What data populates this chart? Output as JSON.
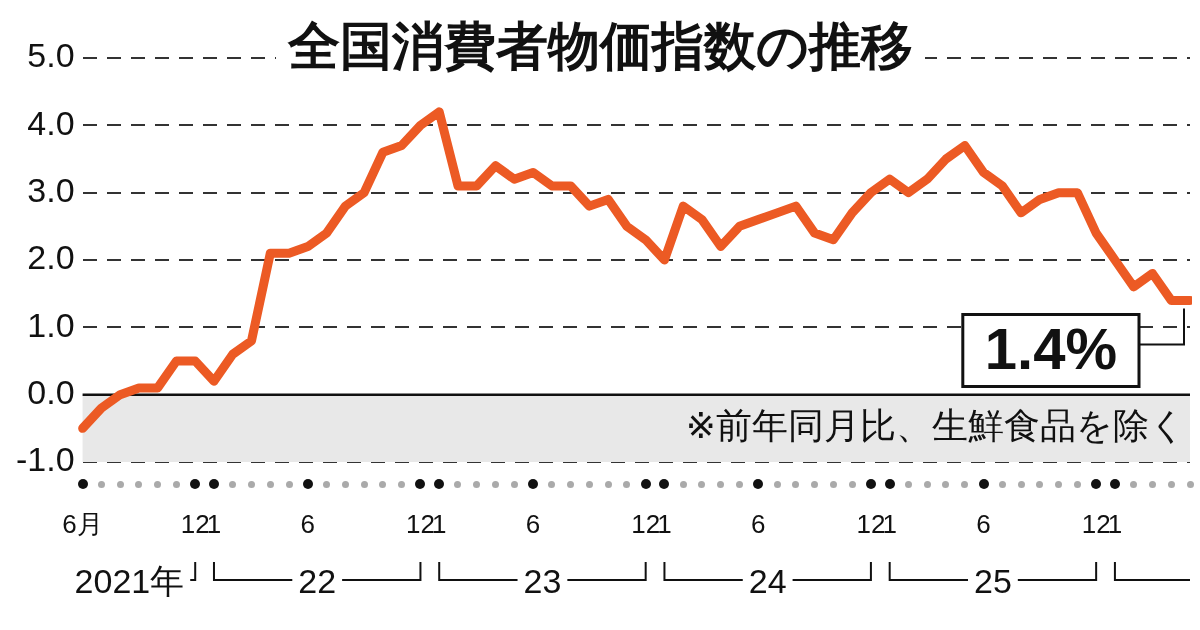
{
  "chart_data": {
    "type": "line",
    "title": "全国消費者物価指数の推移",
    "categories": [
      "6月",
      null,
      null,
      null,
      null,
      null,
      "12",
      "1",
      null,
      null,
      null,
      null,
      "6",
      null,
      null,
      null,
      null,
      null,
      "12",
      "1",
      null,
      null,
      null,
      null,
      "6",
      null,
      null,
      null,
      null,
      null,
      "12",
      "1",
      null,
      null,
      null,
      null,
      "6",
      null,
      null,
      null,
      null,
      null,
      "12",
      "1",
      null,
      null,
      null,
      null,
      "6",
      null,
      null,
      null,
      null,
      null,
      "12",
      "1",
      null,
      null,
      null,
      null
    ],
    "series": [
      {
        "color": "#ec5a24",
        "values": [
          -0.5,
          -0.2,
          0.0,
          0.1,
          0.1,
          0.5,
          0.5,
          0.2,
          0.6,
          0.8,
          2.1,
          2.1,
          2.2,
          2.4,
          2.8,
          3.0,
          3.6,
          3.7,
          4.0,
          4.2,
          3.1,
          3.1,
          3.4,
          3.2,
          3.3,
          3.1,
          3.1,
          2.8,
          2.9,
          2.5,
          2.3,
          2.0,
          2.8,
          2.6,
          2.2,
          2.5,
          2.6,
          2.7,
          2.8,
          2.4,
          2.3,
          2.7,
          3.0,
          3.2,
          3.0,
          3.2,
          3.5,
          3.7,
          3.3,
          3.1,
          2.7,
          2.9,
          3.0,
          3.0,
          2.4,
          2.0,
          1.6,
          1.8,
          1.4,
          1.4
        ]
      }
    ],
    "ylim": [
      -1,
      5
    ],
    "yticks": [
      {
        "value": -1,
        "label": "-1.0"
      },
      {
        "value": 0,
        "label": "0.0"
      },
      {
        "value": 1,
        "label": "1.0"
      },
      {
        "value": 2,
        "label": "2.0"
      },
      {
        "value": 3,
        "label": "3.0"
      },
      {
        "value": 4,
        "label": "4.0"
      },
      {
        "value": 5,
        "label": "5.0"
      }
    ],
    "grid": "y",
    "marker": "none",
    "line_style": "solid",
    "legend": false,
    "ref_lines": [
      {
        "axis": "y",
        "value": 0,
        "color": "#111111",
        "line_style": "solid"
      }
    ],
    "bands": [
      {
        "axis": "y",
        "from": -1,
        "to": 0,
        "color": "#e8e8e8"
      }
    ],
    "value_labels": [
      null,
      null,
      null,
      null,
      null,
      null,
      null,
      null,
      null,
      null,
      null,
      null,
      null,
      null,
      null,
      null,
      null,
      null,
      null,
      null,
      null,
      null,
      null,
      null,
      null,
      null,
      null,
      null,
      null,
      null,
      null,
      null,
      null,
      null,
      null,
      null,
      null,
      null,
      null,
      null,
      null,
      null,
      null,
      null,
      null,
      null,
      null,
      null,
      null,
      null,
      null,
      null,
      null,
      null,
      null,
      null,
      null,
      null,
      null,
      "1.4%"
    ],
    "annotations": [
      "※前年同月比、生鮮食品を除く",
      "2021年",
      "22",
      "23",
      "24",
      "25"
    ]
  }
}
